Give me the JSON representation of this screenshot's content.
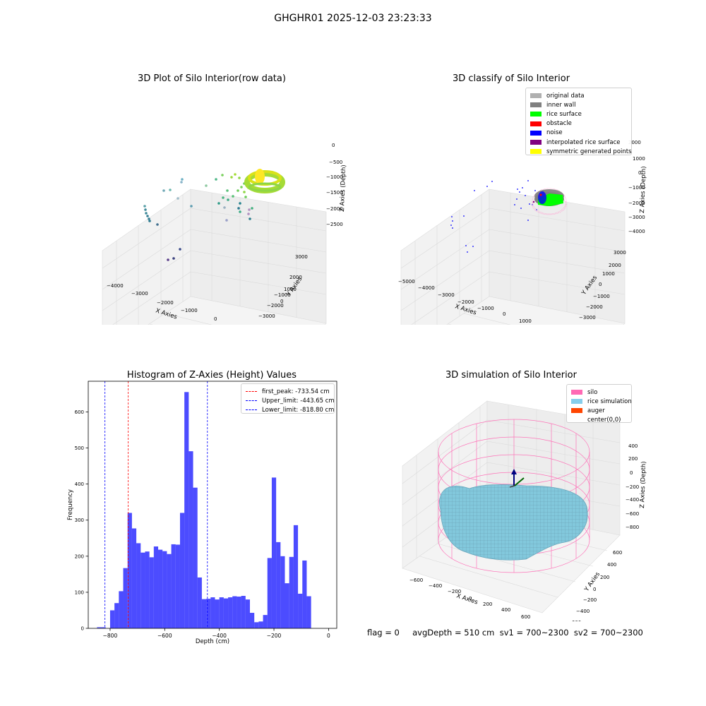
{
  "suptitle": "GHGHR01 2025-12-03 23:23:33",
  "panels": {
    "raw": {
      "title": "3D Plot of Silo Interior(row data)",
      "xlabel": "X Axies",
      "ylabel": "Y Axies",
      "zlabel": "Z Axies (Depth)",
      "xticks": [
        "-4000",
        "-3000",
        "-2000",
        "-1000",
        "0"
      ],
      "yticks": [
        "3000",
        "2000",
        "1000",
        "0",
        "-1000",
        "-2000",
        "-3000"
      ],
      "zticks": [
        "0",
        "-500",
        "-1000",
        "-1500",
        "-2000",
        "-2500"
      ]
    },
    "classify": {
      "title": "3D classify of Silo Interior",
      "xlabel": "X Axies",
      "ylabel": "Y Axies",
      "zlabel": "Z Axies (Depth)",
      "xticks": [
        "-5000",
        "-4000",
        "-3000",
        "-2000",
        "-1000",
        "0",
        "1000"
      ],
      "yticks": [
        "3000",
        "2000",
        "1000",
        "0",
        "-1000",
        "-2000",
        "-3000"
      ],
      "zticks": [
        "1000",
        "0",
        "-1000",
        "-2000",
        "-3000",
        "-4000"
      ],
      "zticks_partial": "2000",
      "legend": [
        {
          "label": "original data",
          "color": "#b0b0b0"
        },
        {
          "label": "inner wall",
          "color": "#808080"
        },
        {
          "label": "rice surface",
          "color": "#00ff00"
        },
        {
          "label": "obstacle",
          "color": "#ff0000"
        },
        {
          "label": "noise",
          "color": "#0000ff"
        },
        {
          "label": "interpolated rice surface",
          "color": "#800080"
        },
        {
          "label": "symmetric generated points",
          "color": "#ffff00"
        }
      ]
    },
    "simulation": {
      "title": "3D simulation of Silo Interior",
      "xlabel": "X Axies",
      "ylabel": "Y Axies",
      "zlabel": "Z Axies (Depth)",
      "xticks": [
        "-600",
        "-400",
        "-200",
        "0",
        "200",
        "400",
        "600"
      ],
      "yticks": [
        "600",
        "400",
        "200",
        "0",
        "-200",
        "-400",
        "-600"
      ],
      "zticks": [
        "400",
        "200",
        "0",
        "-200",
        "-400",
        "-600",
        "-800"
      ],
      "legend": [
        {
          "label": "silo",
          "color": "#ff69b4"
        },
        {
          "label": "rice simulation",
          "color": "#87ceeb"
        },
        {
          "label": "auger",
          "color": "#ff4500"
        },
        {
          "label": "center(0,0)",
          "color": ""
        }
      ]
    }
  },
  "footer": "flag = 0     avgDepth = 510 cm  sv1 = 700~2300  sv2 = 700~2300",
  "chart_data": [
    {
      "type": "bar",
      "title": "Histogram of Z-Axies (Height) Values",
      "xlabel": "Depth (cm)",
      "ylabel": "Frequency",
      "xlim": [
        -880,
        30
      ],
      "ylim": [
        0,
        685
      ],
      "bin_width": 16,
      "bin_start": -848,
      "values": [
        3,
        3,
        0,
        50,
        70,
        103,
        167,
        320,
        277,
        236,
        210,
        213,
        197,
        227,
        218,
        214,
        206,
        233,
        232,
        320,
        655,
        491,
        390,
        141,
        81,
        82,
        86,
        80,
        86,
        83,
        86,
        89,
        88,
        90,
        80,
        43,
        17,
        19,
        37,
        195,
        418,
        239,
        200,
        125,
        198,
        286,
        96,
        188,
        89
      ],
      "color": "#0000ff",
      "xticks": [
        "−800",
        "−600",
        "−400",
        "−200",
        "0"
      ],
      "yticks": [
        "0",
        "100",
        "200",
        "300",
        "400",
        "500",
        "600"
      ],
      "vlines": [
        {
          "label": "first_peak: -733.54 cm",
          "x": -733.54,
          "color": "#ff0000"
        },
        {
          "label": "Upper_limit: -443.65 cm",
          "x": -443.65,
          "color": "#0000ff"
        },
        {
          "label": "Lower_limit: -818.80 cm",
          "x": -818.8,
          "color": "#0000ff"
        }
      ]
    }
  ]
}
